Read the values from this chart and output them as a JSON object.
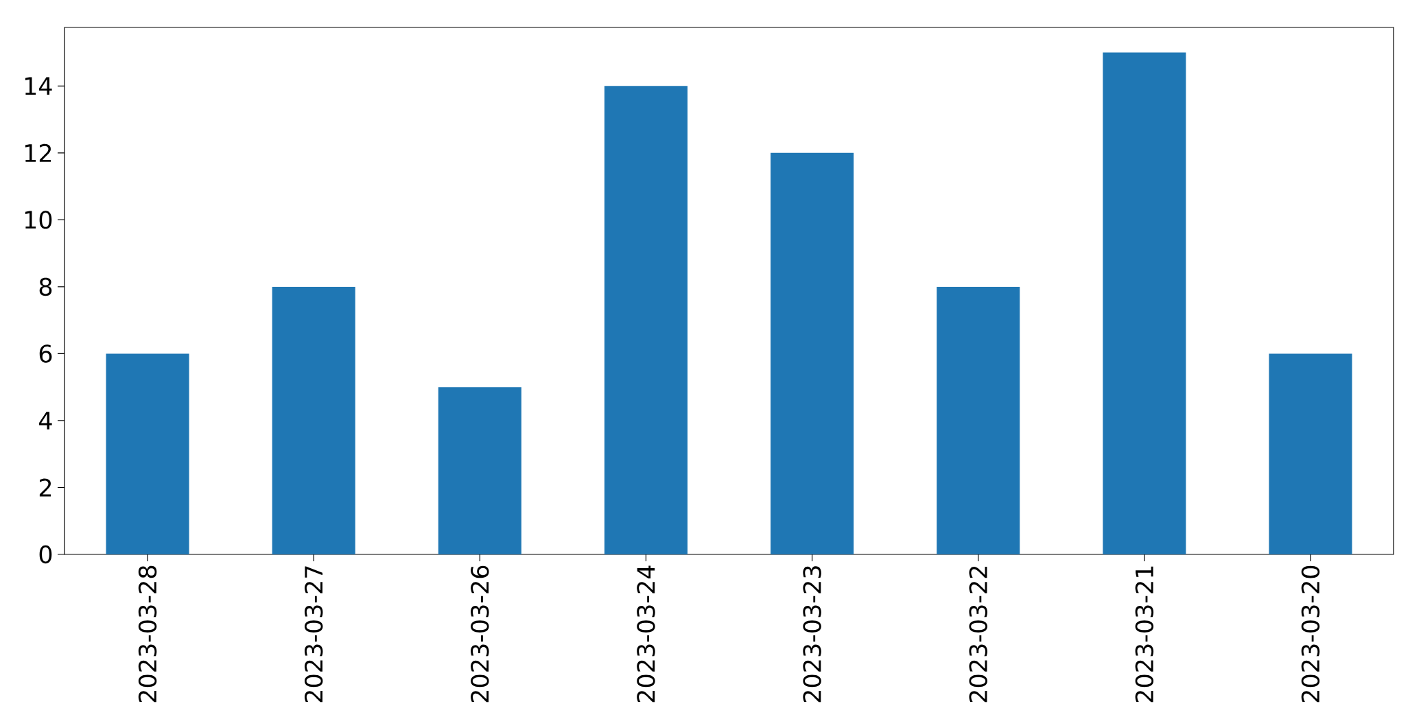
{
  "chart_data": {
    "type": "bar",
    "categories": [
      "2023-03-28",
      "2023-03-27",
      "2023-03-26",
      "2023-03-24",
      "2023-03-23",
      "2023-03-22",
      "2023-03-21",
      "2023-03-20"
    ],
    "values": [
      6,
      8,
      5,
      14,
      12,
      8,
      15,
      6
    ],
    "color": "#1f77b4",
    "ylim": [
      0,
      15.75
    ],
    "yticks": [
      0,
      2,
      4,
      6,
      8,
      10,
      12,
      14
    ]
  }
}
